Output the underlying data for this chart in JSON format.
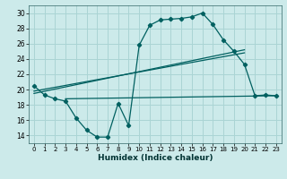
{
  "xlabel": "Humidex (Indice chaleur)",
  "background_color": "#cceaea",
  "grid_color": "#aad4d4",
  "line_color": "#006060",
  "xlim": [
    -0.5,
    23.5
  ],
  "ylim": [
    13.0,
    31.0
  ],
  "yticks": [
    14,
    16,
    18,
    20,
    22,
    24,
    26,
    28,
    30
  ],
  "xticks": [
    0,
    1,
    2,
    3,
    4,
    5,
    6,
    7,
    8,
    9,
    10,
    11,
    12,
    13,
    14,
    15,
    16,
    17,
    18,
    19,
    20,
    21,
    22,
    23
  ],
  "series1_x": [
    0,
    1,
    2,
    3,
    4,
    5,
    6,
    7,
    8,
    9,
    10,
    11,
    12,
    13,
    14,
    15,
    16,
    17,
    18,
    19,
    20,
    21,
    22,
    23
  ],
  "series1_y": [
    20.5,
    19.3,
    18.8,
    18.5,
    16.3,
    14.7,
    13.8,
    13.8,
    18.2,
    15.3,
    25.8,
    28.4,
    29.1,
    29.2,
    29.3,
    29.5,
    30.0,
    28.5,
    26.5,
    25.0,
    23.3,
    19.2,
    19.3,
    19.2
  ],
  "series2_x": [
    0,
    20
  ],
  "series2_y": [
    19.5,
    25.2
  ],
  "series3_x": [
    0,
    20
  ],
  "series3_y": [
    19.8,
    24.8
  ],
  "series4_x": [
    3,
    23
  ],
  "series4_y": [
    18.8,
    19.2
  ]
}
